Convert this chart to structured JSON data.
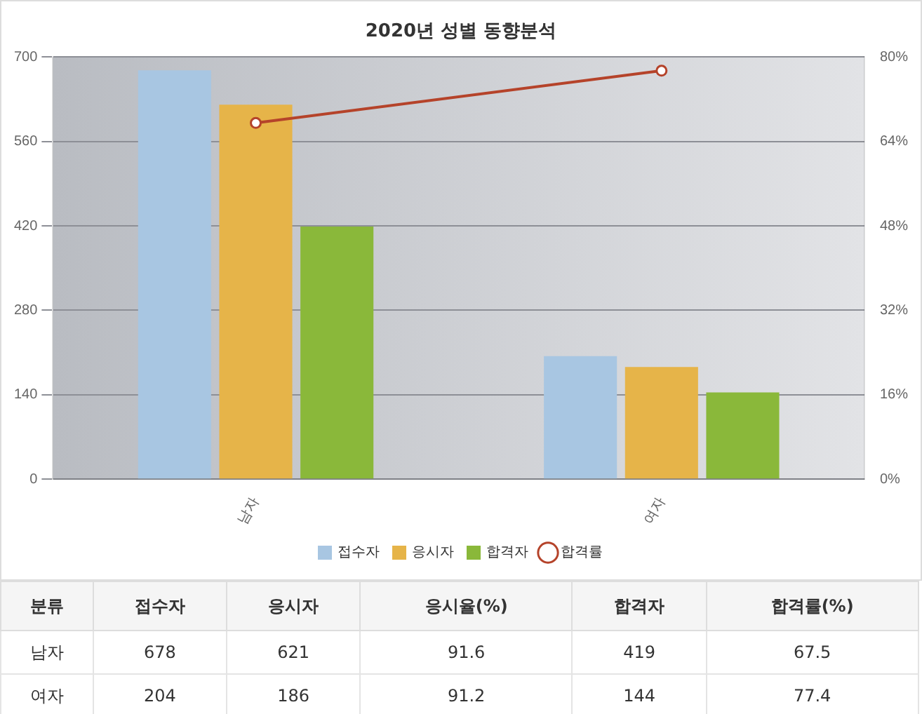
{
  "chart_data": [
    {
      "type": "bar",
      "title": "2020년 성별 동향분석",
      "categories": [
        "남자",
        "여자"
      ],
      "series": [
        {
          "name": "접수자",
          "color": "#a8c6e2",
          "values": [
            678,
            204
          ]
        },
        {
          "name": "응시자",
          "color": "#e6b449",
          "values": [
            621,
            186
          ]
        },
        {
          "name": "합격자",
          "color": "#8ab83a",
          "values": [
            419,
            144
          ]
        },
        {
          "name": "합격률",
          "type": "line",
          "axis": "y2",
          "color": "#b5432a",
          "values": [
            67.5,
            77.4
          ]
        }
      ],
      "ylim": [
        0,
        700
      ],
      "yticks": [
        0,
        140,
        280,
        420,
        560,
        700
      ],
      "y2lim": [
        0,
        80
      ],
      "y2ticks": [
        {
          "value": 0,
          "label": "0%"
        },
        {
          "value": 16,
          "label": "16%"
        },
        {
          "value": 32,
          "label": "32%"
        },
        {
          "value": 48,
          "label": "48%"
        },
        {
          "value": 64,
          "label": "64%"
        },
        {
          "value": 80,
          "label": "80%"
        }
      ],
      "grid": "y",
      "legend": "bottom",
      "marker": "circle"
    },
    {
      "type": "other",
      "xlabel": "분류",
      "categories": [
        "남자",
        "여자"
      ],
      "series": [
        {
          "name": "접수자",
          "values": [
            678,
            204
          ],
          "value_labels": [
            "678",
            "204"
          ]
        },
        {
          "name": "응시자",
          "values": [
            621,
            186
          ],
          "value_labels": [
            "621",
            "186"
          ]
        },
        {
          "name": "응시율(%)",
          "values": [
            91.6,
            91.2
          ],
          "value_labels": [
            "91.6",
            "91.2"
          ]
        },
        {
          "name": "합격자",
          "values": [
            419,
            144
          ],
          "value_labels": [
            "419",
            "144"
          ]
        },
        {
          "name": "합격률(%)",
          "values": [
            67.5,
            77.4
          ],
          "value_labels": [
            "67.5",
            "77.4"
          ]
        }
      ]
    }
  ]
}
